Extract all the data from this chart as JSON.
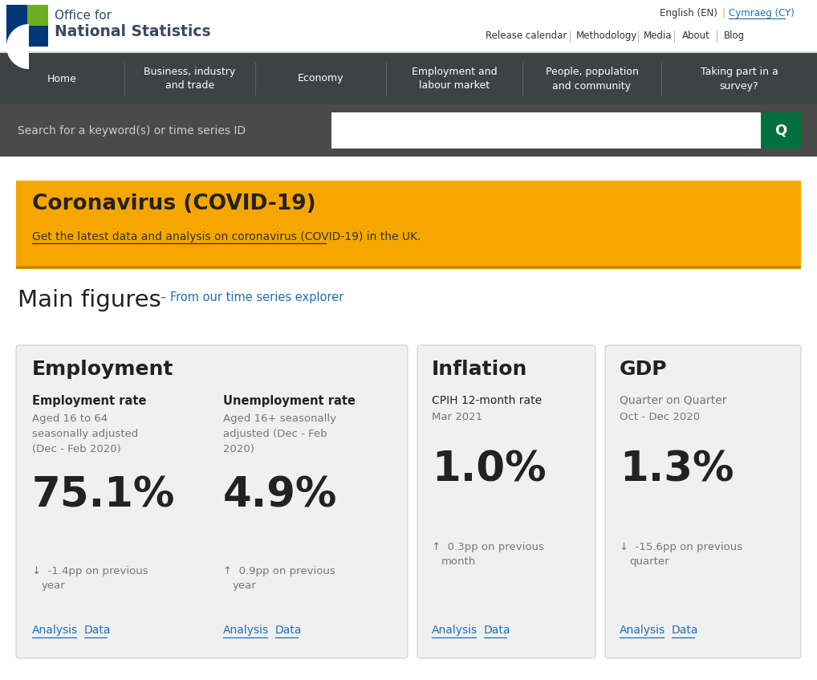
{
  "bg_color": "#ffffff",
  "nav_bg": "#3d4244",
  "search_bg": "#4a4a4a",
  "covid_banner_bg": "#f5a700",
  "covid_border_bg": "#c98a00",
  "card_bg": "#f0f0f0",
  "link_color": "#1d70b8",
  "text_dark": "#222222",
  "text_gray": "#767676",
  "nav_text": "#ffffff",
  "ons_green": "#6caf23",
  "ons_blue": "#003778",
  "search_green": "#00703c",
  "main_nav_items": [
    "Home",
    "Business, industry\nand trade",
    "Economy",
    "Employment and\nlabour market",
    "People, population\nand community",
    "Taking part in a\nsurvey?"
  ],
  "nav_widths": [
    155,
    163,
    163,
    170,
    173,
    194
  ],
  "search_placeholder": "Search for a keyword(s) or time series ID",
  "covid_title": "Coronavirus (COVID-19)",
  "covid_link": "Get the latest data and analysis on coronavirus (COVID-19) in the UK.",
  "main_figures_title": "Main figures",
  "main_figures_link": "– From our time series explorer",
  "employment_title": "Employment",
  "emp_rate_label": "Employment rate",
  "emp_rate_desc": "Aged 16 to 64\nseasonally adjusted\n(Dec - Feb 2020)",
  "emp_rate_value": "75.1%",
  "emp_rate_change_line1": "↓  -1.4pp on previous",
  "emp_rate_change_line2": "    year",
  "unemp_rate_label": "Unemployment rate",
  "unemp_rate_desc": "Aged 16+ seasonally\nadjusted (Dec - Feb\n2020)",
  "unemp_rate_value": "4.9%",
  "unemp_rate_change_line1": "↑  0.9pp on previous",
  "unemp_rate_change_line2": "    year",
  "inflation_title": "Inflation",
  "inflation_label": "CPIH 12-month rate",
  "inflation_period": "Mar 2021",
  "inflation_value": "1.0%",
  "inflation_change_line1": "↑  0.3pp on previous",
  "inflation_change_line2": "    month",
  "gdp_title": "GDP",
  "gdp_label": "Quarter on Quarter",
  "gdp_period": "Oct - Dec 2020",
  "gdp_value": "1.3%",
  "gdp_change_line1": "↓  -15.6pp on previous",
  "gdp_change_line2": "    quarter"
}
